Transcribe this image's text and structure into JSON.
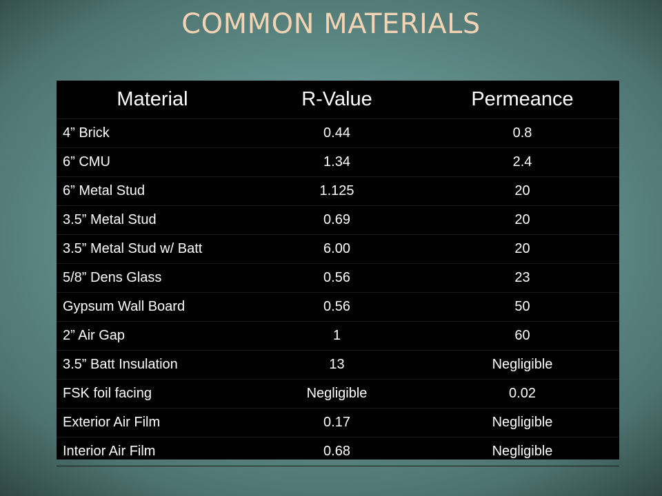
{
  "title": "COMMON MATERIALS",
  "table": {
    "headers": [
      "Material",
      "R-Value",
      "Permeance"
    ],
    "rows": [
      [
        "4” Brick",
        "0.44",
        "0.8"
      ],
      [
        "6” CMU",
        "1.34",
        "2.4"
      ],
      [
        "6” Metal Stud",
        "1.125",
        "20"
      ],
      [
        "3.5” Metal Stud",
        "0.69",
        "20"
      ],
      [
        "3.5” Metal Stud w/ Batt",
        "6.00",
        "20"
      ],
      [
        "5/8” Dens Glass",
        "0.56",
        "23"
      ],
      [
        "Gypsum Wall Board",
        "0.56",
        "50"
      ],
      [
        "2” Air Gap",
        "1",
        "60"
      ],
      [
        "3.5” Batt Insulation",
        "13",
        "Negligible"
      ],
      [
        "FSK foil facing",
        "Negligible",
        "0.02"
      ],
      [
        "Exterior Air Film",
        "0.17",
        "Negligible"
      ],
      [
        "Interior Air Film",
        "0.68",
        "Negligible"
      ]
    ]
  },
  "colors": {
    "title": "#f2d3b3",
    "table_background": "#000000",
    "text": "#ffffff",
    "background": "#62908c"
  }
}
